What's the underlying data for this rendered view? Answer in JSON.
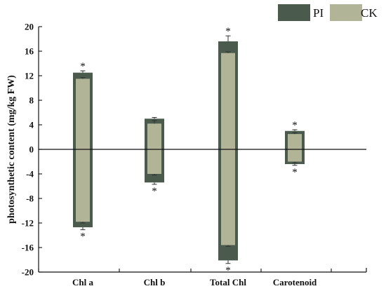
{
  "chart_data": {
    "type": "bar",
    "title": "",
    "xlabel": "",
    "ylabel": "photosynthetic content (mg/kg FW)",
    "ylim": [
      -20,
      20
    ],
    "yticks": [
      20,
      16,
      12,
      8,
      4,
      0,
      -4,
      -8,
      -12,
      -16,
      -20
    ],
    "categories": [
      "Chl a",
      "Chl b",
      "Total Chl",
      "Carotenoid"
    ],
    "legend_position": "top-right",
    "series": [
      {
        "name": "PI",
        "color": "#4a5a4d",
        "pos": [
          12.5,
          5.0,
          17.6,
          3.0
        ],
        "neg": [
          -12.7,
          -5.4,
          -18.1,
          -2.4
        ],
        "pos_err": [
          0.3,
          0.2,
          0.9,
          0.2
        ],
        "neg_err": [
          0.4,
          0.3,
          0.5,
          0.2
        ],
        "pos_star": [
          "*",
          "",
          "*",
          "*"
        ],
        "neg_star": [
          "*",
          "*",
          "*",
          "*"
        ]
      },
      {
        "name": "CK",
        "color": "#b1b497",
        "pos": [
          11.5,
          4.2,
          15.7,
          2.5
        ],
        "neg": [
          -11.8,
          -4.0,
          -15.6,
          -2.0
        ],
        "pos_err": [
          0.2,
          0.5,
          0.2,
          0.2
        ],
        "neg_err": [
          0.2,
          0.2,
          0.2,
          0.2
        ],
        "pos_star": [
          "",
          "",
          "",
          ""
        ],
        "neg_star": [
          "",
          "",
          "",
          ""
        ]
      }
    ]
  }
}
